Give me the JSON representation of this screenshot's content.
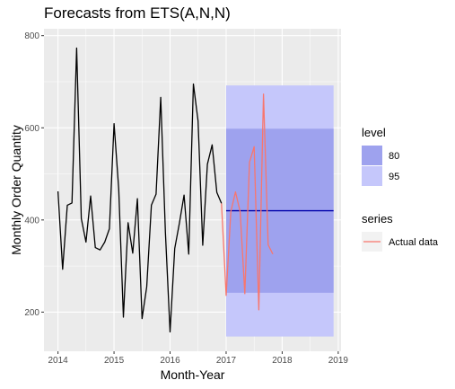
{
  "chart_data": {
    "type": "line",
    "title": "Forecasts from ETS(A,N,N)",
    "xlabel": "Month-Year",
    "ylabel": "Monthly Order Quantity",
    "xlim": [
      2013.75,
      2019.05
    ],
    "ylim": [
      115,
      815
    ],
    "x_ticks": [
      2014,
      2015,
      2016,
      2017,
      2018,
      2019
    ],
    "x_tick_labels": [
      "2014",
      "2015",
      "2016",
      "2017",
      "2018",
      "2019"
    ],
    "y_ticks": [
      200,
      400,
      600,
      800
    ],
    "y_tick_labels": [
      "200",
      "400",
      "600",
      "800"
    ],
    "grid": true,
    "colors": {
      "panel": "#ebebeb",
      "grid": "#ffffff",
      "history": "#000000",
      "actual": "#f8766d",
      "forecast": "#0000aa",
      "band80": "#9ea2ee",
      "band95": "#c5c7fb"
    },
    "history": {
      "x_start": 2014.0,
      "x_step": 0.08333,
      "values": [
        462,
        293,
        432,
        437,
        773,
        403,
        352,
        452,
        340,
        335,
        352,
        381,
        609,
        467,
        189,
        394,
        328,
        446,
        186,
        255,
        432,
        456,
        666,
        373,
        157,
        338,
        393,
        454,
        326,
        695,
        615,
        345,
        521,
        563,
        460,
        436
      ]
    },
    "forecast": {
      "x_start": 2017.0,
      "x_end": 2018.917,
      "point": 420,
      "lo80": 242,
      "hi80": 598,
      "lo95": 147,
      "hi95": 692
    },
    "series": [
      {
        "name": "Actual data",
        "x_start": 2016.917,
        "x_step": 0.08333,
        "values": [
          436,
          236,
          418,
          461,
          418,
          240,
          525,
          559,
          205,
          673,
          346,
          326
        ]
      }
    ],
    "legend": {
      "placement": "right",
      "level_title": "level",
      "levels": [
        "80",
        "95"
      ],
      "series_title": "series",
      "series_label": "Actual data"
    }
  }
}
